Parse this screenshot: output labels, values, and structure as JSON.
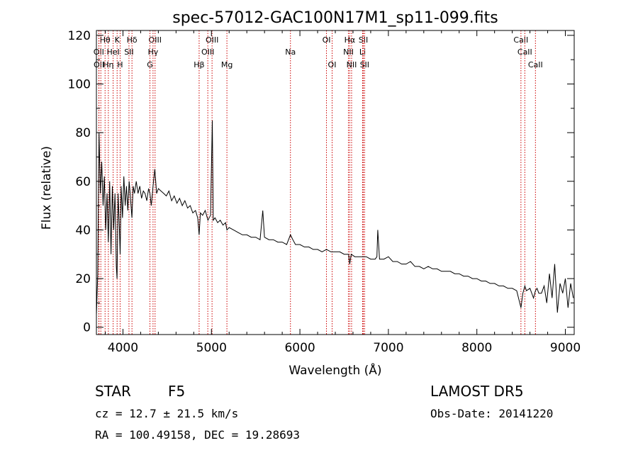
{
  "chart_data": {
    "type": "line",
    "title": "spec-57012-GAC100N17M1_sp11-099.fits",
    "xlabel": "Wavelength (Å)",
    "ylabel": "Flux (relative)",
    "xlim": [
      3700,
      9100
    ],
    "ylim": [
      -3,
      122
    ],
    "x_ticks": [
      4000,
      5000,
      6000,
      7000,
      8000,
      9000
    ],
    "x_tick_labels": [
      "4000",
      "5000",
      "6000",
      "7000",
      "8000",
      "9000"
    ],
    "y_ticks": [
      0,
      20,
      40,
      60,
      80,
      100,
      120
    ],
    "y_tick_labels": [
      "0",
      "20",
      "40",
      "60",
      "80",
      "100",
      "120"
    ],
    "grid": false,
    "series": [
      {
        "color": "#000000",
        "x": [
          3700,
          3715,
          3730,
          3745,
          3760,
          3775,
          3790,
          3805,
          3820,
          3835,
          3850,
          3865,
          3880,
          3895,
          3910,
          3925,
          3933,
          3945,
          3960,
          3968,
          3980,
          3995,
          4010,
          4025,
          4040,
          4055,
          4070,
          4085,
          4101,
          4115,
          4130,
          4150,
          4170,
          4190,
          4210,
          4230,
          4250,
          4270,
          4290,
          4305,
          4320,
          4340,
          4360,
          4380,
          4400,
          4430,
          4460,
          4490,
          4520,
          4550,
          4580,
          4610,
          4640,
          4670,
          4700,
          4730,
          4760,
          4790,
          4820,
          4845,
          4861,
          4875,
          4900,
          4930,
          4960,
          4990,
          5010,
          5020,
          5040,
          5070,
          5100,
          5130,
          5160,
          5175,
          5200,
          5250,
          5300,
          5350,
          5400,
          5450,
          5500,
          5550,
          5580,
          5600,
          5650,
          5700,
          5750,
          5800,
          5850,
          5893,
          5920,
          5950,
          6000,
          6050,
          6100,
          6150,
          6200,
          6250,
          6300,
          6350,
          6400,
          6450,
          6500,
          6550,
          6563,
          6580,
          6620,
          6660,
          6700,
          6750,
          6800,
          6850,
          6870,
          6880,
          6900,
          6950,
          7000,
          7050,
          7100,
          7150,
          7200,
          7250,
          7300,
          7350,
          7400,
          7450,
          7500,
          7550,
          7600,
          7650,
          7700,
          7750,
          7800,
          7850,
          7900,
          7950,
          8000,
          8050,
          8100,
          8150,
          8200,
          8250,
          8300,
          8350,
          8400,
          8450,
          8498,
          8520,
          8542,
          8560,
          8600,
          8640,
          8662,
          8680,
          8700,
          8730,
          8760,
          8790,
          8820,
          8850,
          8880,
          8910,
          8940,
          8970,
          9000,
          9030,
          9060,
          9090
        ],
        "y": [
          5,
          22,
          80,
          55,
          68,
          50,
          62,
          40,
          55,
          35,
          60,
          30,
          58,
          40,
          55,
          25,
          20,
          55,
          40,
          30,
          58,
          45,
          62,
          50,
          58,
          48,
          60,
          53,
          45,
          58,
          55,
          60,
          55,
          58,
          53,
          56,
          55,
          52,
          57,
          55,
          50,
          58,
          65,
          55,
          57,
          56,
          55,
          54,
          56,
          52,
          54,
          51,
          53,
          50,
          52,
          49,
          50,
          47,
          48,
          45,
          38,
          47,
          46,
          48,
          44,
          46,
          85,
          44,
          45,
          43,
          44,
          42,
          43,
          40,
          41,
          40,
          39,
          38,
          38,
          37,
          37,
          36,
          48,
          37,
          36,
          36,
          35,
          35,
          34,
          38,
          36,
          34,
          34,
          33,
          33,
          32,
          32,
          31,
          32,
          31,
          31,
          31,
          30,
          30,
          26,
          30,
          29,
          29,
          29,
          29,
          28,
          28,
          29,
          40,
          28,
          28,
          29,
          27,
          27,
          26,
          26,
          27,
          25,
          25,
          24,
          25,
          24,
          24,
          23,
          23,
          23,
          22,
          22,
          21,
          21,
          20,
          20,
          19,
          19,
          18,
          18,
          17,
          17,
          16,
          16,
          15,
          8,
          14,
          17,
          15,
          16,
          12,
          15,
          16,
          14,
          14,
          17,
          10,
          22,
          12,
          26,
          6,
          18,
          14,
          20,
          8,
          18,
          12
        ]
      }
    ],
    "line_markers": [
      {
        "label": "Hθ",
        "wavelength": 3798,
        "row": 0
      },
      {
        "label": "K",
        "wavelength": 3934,
        "row": 0
      },
      {
        "label": "Hδ",
        "wavelength": 4102,
        "row": 0
      },
      {
        "label": "OIII",
        "wavelength": 4363,
        "row": 0
      },
      {
        "label": "OIII",
        "wavelength": 5007,
        "row": 0
      },
      {
        "label": "OI",
        "wavelength": 6300,
        "row": 0
      },
      {
        "label": "Hα",
        "wavelength": 6563,
        "row": 0
      },
      {
        "label": "SII",
        "wavelength": 6717,
        "row": 0
      },
      {
        "label": "CaII",
        "wavelength": 8498,
        "row": 0
      },
      {
        "label": "OII",
        "wavelength": 3727,
        "row": 1
      },
      {
        "label": "HeI",
        "wavelength": 3889,
        "row": 1
      },
      {
        "label": "SII",
        "wavelength": 4068,
        "row": 1
      },
      {
        "label": "Hγ",
        "wavelength": 4340,
        "row": 1
      },
      {
        "label": "OIII",
        "wavelength": 4959,
        "row": 1
      },
      {
        "label": "Na",
        "wavelength": 5893,
        "row": 1
      },
      {
        "label": "NII",
        "wavelength": 6548,
        "row": 1
      },
      {
        "label": "Li",
        "wavelength": 6708,
        "row": 1
      },
      {
        "label": "CaII",
        "wavelength": 8542,
        "row": 1
      },
      {
        "label": "OII",
        "wavelength": 3729,
        "row": 2
      },
      {
        "label": "Hη",
        "wavelength": 3835,
        "row": 2
      },
      {
        "label": "H",
        "wavelength": 3968,
        "row": 2
      },
      {
        "label": "G",
        "wavelength": 4305,
        "row": 2
      },
      {
        "label": "Hβ",
        "wavelength": 4861,
        "row": 2
      },
      {
        "label": "Mg",
        "wavelength": 5175,
        "row": 2
      },
      {
        "label": "OI",
        "wavelength": 6364,
        "row": 2
      },
      {
        "label": "NII",
        "wavelength": 6584,
        "row": 2
      },
      {
        "label": "SII",
        "wavelength": 6731,
        "row": 2
      },
      {
        "label": "CaII",
        "wavelength": 8662,
        "row": 2
      }
    ],
    "marker_extra_lines": [
      3750,
      3890,
      4102
    ]
  },
  "footer": {
    "class_label": "STAR",
    "subclass": "F5",
    "survey": "LAMOST DR5",
    "cz": "cz = 12.7 ± 21.5 km/s",
    "obs_date": "Obs-Date: 20141220",
    "coords": "RA = 100.49158, DEC =  19.28693"
  },
  "colors": {
    "marker": "#cc0000",
    "spectrum": "#000000"
  }
}
